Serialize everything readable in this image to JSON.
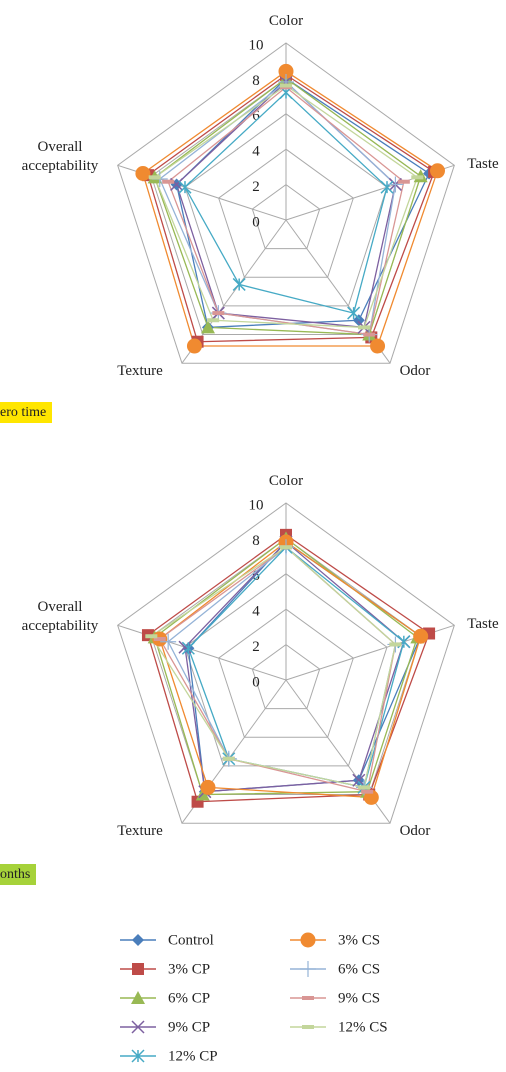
{
  "chart_data": [
    {
      "type": "radar",
      "caption": "ero time",
      "caption_color": "#ffe600",
      "categories": [
        "Color",
        "Taste",
        "Odor",
        "Texture",
        "Overall acceptability"
      ],
      "ylim": [
        0,
        10
      ],
      "yticks": [
        0,
        2,
        4,
        6,
        8,
        10
      ],
      "grid": true,
      "series": [
        {
          "name": "Control",
          "color": "#4a7ebb",
          "marker": "diamond",
          "values": [
            8,
            8.5,
            7,
            7.5,
            6.5
          ]
        },
        {
          "name": "3% CP",
          "color": "#be4b48",
          "marker": "square",
          "values": [
            8.2,
            8.8,
            8.2,
            8.5,
            8.2
          ]
        },
        {
          "name": "6% CP",
          "color": "#98b954",
          "marker": "triangle",
          "values": [
            8,
            8,
            8,
            7.5,
            7.8
          ]
        },
        {
          "name": "9% CP",
          "color": "#7d60a0",
          "marker": "x",
          "values": [
            7.8,
            6.5,
            7.5,
            6.5,
            6.5
          ]
        },
        {
          "name": "12% CP",
          "color": "#46aac5",
          "marker": "star",
          "values": [
            7.2,
            6,
            6.5,
            4.5,
            6
          ]
        },
        {
          "name": "3% CS",
          "color": "#f08a30",
          "marker": "circle",
          "values": [
            8.4,
            9,
            8.8,
            8.8,
            8.5
          ]
        },
        {
          "name": "6% CS",
          "color": "#95b3d7",
          "marker": "plus",
          "values": [
            7.8,
            6.5,
            8,
            6.5,
            7.5
          ]
        },
        {
          "name": "9% CS",
          "color": "#d99694",
          "marker": "dash",
          "values": [
            7.5,
            7,
            8,
            6.5,
            7
          ]
        },
        {
          "name": "12% CS",
          "color": "#c3d69b",
          "marker": "dash",
          "values": [
            7.6,
            7.8,
            7.5,
            7,
            7.8
          ]
        }
      ]
    },
    {
      "type": "radar",
      "caption": "onths",
      "caption_color": "#a6d23a",
      "categories": [
        "Color",
        "Taste",
        "Odor",
        "Texture",
        "Overall acceptability"
      ],
      "ylim": [
        0,
        10
      ],
      "yticks": [
        0,
        2,
        4,
        6,
        8,
        10
      ],
      "grid": true,
      "series": [
        {
          "name": "Control",
          "color": "#4a7ebb",
          "marker": "diamond",
          "values": [
            7.8,
            8,
            7,
            7.8,
            5.8
          ]
        },
        {
          "name": "3% CP",
          "color": "#be4b48",
          "marker": "square",
          "values": [
            8.2,
            8.5,
            8,
            8.5,
            8.2
          ]
        },
        {
          "name": "6% CP",
          "color": "#98b954",
          "marker": "triangle",
          "values": [
            8,
            7.8,
            7.8,
            8,
            7.8
          ]
        },
        {
          "name": "9% CP",
          "color": "#7d60a0",
          "marker": "x",
          "values": [
            7.8,
            7,
            7,
            7.8,
            6
          ]
        },
        {
          "name": "12% CP",
          "color": "#46aac5",
          "marker": "star",
          "values": [
            7.5,
            7,
            7.5,
            5.5,
            5.8
          ]
        },
        {
          "name": "3% CS",
          "color": "#f08a30",
          "marker": "circle",
          "values": [
            7.8,
            8,
            8.2,
            7.5,
            7.5
          ]
        },
        {
          "name": "6% CS",
          "color": "#95b3d7",
          "marker": "plus",
          "values": [
            7.5,
            6.5,
            7.5,
            5.5,
            7
          ]
        },
        {
          "name": "9% CS",
          "color": "#d99694",
          "marker": "dash",
          "values": [
            7.5,
            6.5,
            7.8,
            5.5,
            7.5
          ]
        },
        {
          "name": "12% CS",
          "color": "#c3d69b",
          "marker": "dash",
          "values": [
            7.5,
            6.5,
            7.5,
            5.5,
            8
          ]
        }
      ]
    }
  ]
}
